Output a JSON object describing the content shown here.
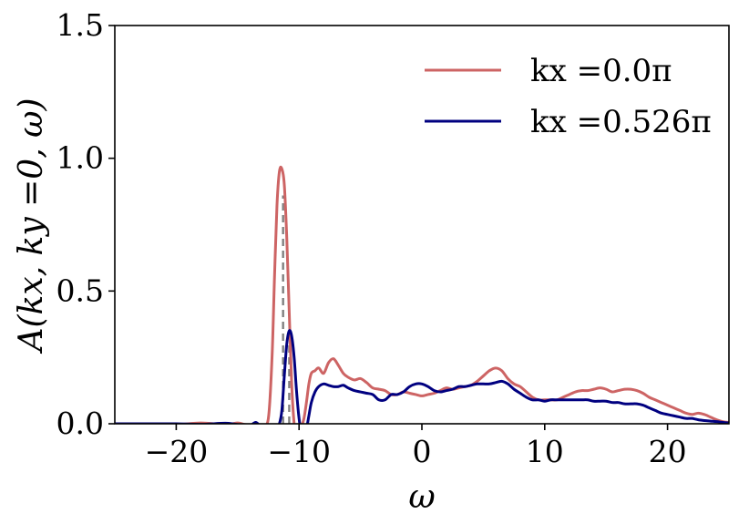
{
  "chart_data": {
    "type": "line",
    "xlabel": "ω",
    "ylabel": "A(kx, ky =0, ω)",
    "xlim": [
      -25,
      25
    ],
    "ylim": [
      0,
      1.5
    ],
    "xticks": [
      -20,
      -10,
      0,
      10,
      20
    ],
    "xtick_labels": [
      "−20",
      "−10",
      "0",
      "10",
      "20"
    ],
    "yticks": [
      0,
      0.5,
      1.0,
      1.5
    ],
    "ytick_labels": [
      "0.0",
      "0.5",
      "1.0",
      "1.5"
    ],
    "grid": false,
    "legend_position": "top-right",
    "series": [
      {
        "name": "kx =0.0π",
        "color": "#cd6464",
        "x": [
          -25,
          -22,
          -20,
          -18,
          -16,
          -15,
          -14.5,
          -14,
          -13.5,
          -13,
          -12.5,
          -12.2,
          -12,
          -11.8,
          -11.6,
          -11.4,
          -11.2,
          -11,
          -10.8,
          -10.6,
          -10.4,
          -10.2,
          -10,
          -9.8,
          -9.6,
          -9.4,
          -9.2,
          -9,
          -8.7,
          -8.4,
          -8,
          -7.6,
          -7.2,
          -6.8,
          -6.4,
          -6,
          -5.5,
          -5,
          -4.5,
          -4,
          -3.5,
          -3,
          -2.5,
          -2,
          -1.5,
          -1,
          -0.5,
          0,
          0.5,
          1,
          1.5,
          2,
          2.5,
          3,
          3.5,
          4,
          4.5,
          5,
          5.5,
          6,
          6.5,
          7,
          7.5,
          8,
          8.5,
          9,
          9.5,
          10,
          10.5,
          11,
          11.5,
          12,
          12.5,
          13,
          13.5,
          14,
          14.5,
          15,
          15.5,
          16,
          16.5,
          17,
          17.5,
          18,
          18.5,
          19,
          19.5,
          20,
          20.5,
          21,
          21.5,
          22,
          22.5,
          23,
          23.5,
          24,
          24.5,
          25
        ],
        "y": [
          0.0,
          0.0,
          -0.003,
          0.003,
          -0.003,
          0.003,
          -0.002,
          -0.005,
          -0.01,
          -0.005,
          0.02,
          0.25,
          0.55,
          0.82,
          0.95,
          0.96,
          0.9,
          0.7,
          0.42,
          0.15,
          0.0,
          -0.05,
          -0.03,
          -0.01,
          0.02,
          0.08,
          0.15,
          0.19,
          0.2,
          0.21,
          0.19,
          0.23,
          0.245,
          0.22,
          0.19,
          0.175,
          0.165,
          0.17,
          0.155,
          0.135,
          0.13,
          0.125,
          0.11,
          0.11,
          0.12,
          0.115,
          0.11,
          0.105,
          0.11,
          0.115,
          0.125,
          0.135,
          0.13,
          0.135,
          0.14,
          0.145,
          0.16,
          0.18,
          0.2,
          0.21,
          0.2,
          0.17,
          0.15,
          0.14,
          0.12,
          0.1,
          0.09,
          0.09,
          0.09,
          0.09,
          0.1,
          0.11,
          0.12,
          0.125,
          0.125,
          0.13,
          0.135,
          0.13,
          0.12,
          0.125,
          0.13,
          0.13,
          0.125,
          0.115,
          0.1,
          0.09,
          0.08,
          0.07,
          0.06,
          0.05,
          0.04,
          0.035,
          0.04,
          0.035,
          0.025,
          0.015,
          0.008,
          0.005
        ]
      },
      {
        "name": "kx =0.526π",
        "color": "#000080",
        "x": [
          -25,
          -22,
          -20,
          -18,
          -16,
          -15,
          -14.5,
          -14,
          -13.5,
          -13,
          -12.5,
          -12.2,
          -12,
          -11.8,
          -11.6,
          -11.4,
          -11.2,
          -11,
          -10.8,
          -10.6,
          -10.4,
          -10.2,
          -10,
          -9.8,
          -9.6,
          -9.4,
          -9.2,
          -9,
          -8.7,
          -8.4,
          -8,
          -7.6,
          -7.2,
          -6.8,
          -6.4,
          -6,
          -5.5,
          -5,
          -4.5,
          -4,
          -3.5,
          -3,
          -2.5,
          -2,
          -1.5,
          -1,
          -0.5,
          0,
          0.5,
          1,
          1.5,
          2,
          2.5,
          3,
          3.5,
          4,
          4.5,
          5,
          5.5,
          6,
          6.5,
          7,
          7.5,
          8,
          8.5,
          9,
          9.5,
          10,
          10.5,
          11,
          11.5,
          12,
          12.5,
          13,
          13.5,
          14,
          14.5,
          15,
          15.5,
          16,
          16.5,
          17,
          17.5,
          18,
          18.5,
          19,
          19.5,
          20,
          20.5,
          21,
          21.5,
          22,
          22.5,
          23,
          23.5,
          24,
          24.5,
          25
        ],
        "y": [
          0.0,
          0.0,
          0.0,
          -0.002,
          0.002,
          -0.003,
          -0.005,
          -0.008,
          0.005,
          -0.02,
          -0.05,
          -0.04,
          -0.02,
          -0.01,
          0.0,
          0.05,
          0.18,
          0.3,
          0.35,
          0.33,
          0.25,
          0.12,
          0.02,
          -0.04,
          -0.05,
          -0.02,
          0.03,
          0.08,
          0.12,
          0.14,
          0.15,
          0.145,
          0.14,
          0.14,
          0.145,
          0.135,
          0.125,
          0.12,
          0.115,
          0.11,
          0.09,
          0.09,
          0.11,
          0.11,
          0.12,
          0.14,
          0.15,
          0.15,
          0.14,
          0.125,
          0.12,
          0.125,
          0.13,
          0.14,
          0.14,
          0.145,
          0.15,
          0.15,
          0.15,
          0.155,
          0.16,
          0.15,
          0.13,
          0.115,
          0.1,
          0.09,
          0.09,
          0.085,
          0.09,
          0.09,
          0.09,
          0.09,
          0.09,
          0.09,
          0.09,
          0.085,
          0.085,
          0.085,
          0.08,
          0.08,
          0.075,
          0.075,
          0.075,
          0.07,
          0.06,
          0.05,
          0.04,
          0.035,
          0.03,
          0.025,
          0.02,
          0.02,
          0.015,
          0.012,
          0.01,
          0.008,
          0.005,
          0.003
        ]
      }
    ],
    "reference_lines": [
      {
        "type": "vline",
        "x": -11.3,
        "ymax": 0.86,
        "color": "#808080",
        "style": "dashed"
      },
      {
        "type": "vline",
        "x": -10.8,
        "ymax": 0.3,
        "color": "#808080",
        "style": "dashed"
      }
    ]
  }
}
